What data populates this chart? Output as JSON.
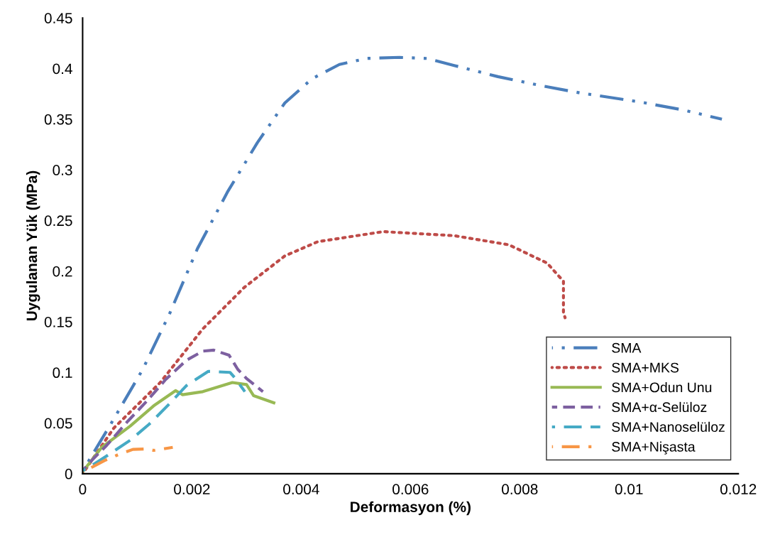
{
  "chart_data": {
    "type": "line",
    "xlabel": "Deformasyon (%)",
    "ylabel": "Uygulanan Yük (MPa)",
    "xlim": [
      0,
      0.012
    ],
    "xticks": [
      0,
      0.002,
      0.004,
      0.006,
      0.008,
      0.01,
      0.012
    ],
    "ylim": [
      0,
      0.45
    ],
    "yticks": [
      0,
      0.05,
      0.1,
      0.15,
      0.2,
      0.25,
      0.3,
      0.35,
      0.4,
      0.45
    ],
    "grid": false,
    "legend": "bottom right",
    "series": [
      {
        "name": "SMA",
        "color": "#4a7ebb",
        "line_style": "dashdotdot",
        "x": [
          1e-05,
          0.00057,
          0.0011,
          0.0016,
          0.0021,
          0.00265,
          0.0032,
          0.0037,
          0.0042,
          0.0047,
          0.0052,
          0.0058,
          0.0063,
          0.0068,
          0.0076,
          0.0084,
          0.0091,
          0.0102,
          0.011,
          0.0117
        ],
        "values": [
          0.0035,
          0.054,
          0.103,
          0.159,
          0.222,
          0.278,
          0.327,
          0.366,
          0.39,
          0.404,
          0.41,
          0.411,
          0.41,
          0.403,
          0.392,
          0.383,
          0.376,
          0.367,
          0.359,
          0.35
        ]
      },
      {
        "name": "SMA+MKS",
        "color": "#be4b48",
        "line_style": "dotted",
        "x": [
          0,
          0.00057,
          0.00142,
          0.0022,
          0.00296,
          0.0037,
          0.0043,
          0.0055,
          0.0068,
          0.0078,
          0.0085,
          0.0088,
          0.0088,
          0.00883
        ],
        "values": [
          0,
          0.045,
          0.09,
          0.143,
          0.184,
          0.215,
          0.229,
          0.239,
          0.235,
          0.226,
          0.208,
          0.19,
          0.159,
          0.154
        ]
      },
      {
        "name": "SMA+Odun Unu",
        "color": "#98b954",
        "line_style": "solid",
        "x": [
          0,
          0.00035,
          0.00087,
          0.0013,
          0.0017,
          0.00183,
          0.0022,
          0.00274,
          0.003,
          0.00313,
          0.0035
        ],
        "values": [
          0.002,
          0.026,
          0.047,
          0.067,
          0.082,
          0.078,
          0.081,
          0.09,
          0.088,
          0.077,
          0.07
        ]
      },
      {
        "name": "SMA+α-Selüloz",
        "color": "#7d60a0",
        "line_style": "dashed",
        "x": [
          0,
          0.0002,
          0.00044,
          0.00083,
          0.00118,
          0.00152,
          0.0019,
          0.0022,
          0.0024,
          0.00268,
          0.00284,
          0.003,
          0.0033
        ],
        "values": [
          0.003,
          0.015,
          0.028,
          0.052,
          0.072,
          0.093,
          0.112,
          0.121,
          0.122,
          0.117,
          0.103,
          0.094,
          0.081
        ]
      },
      {
        "name": "SMA+Nanoselüloz",
        "color": "#46aac5",
        "line_style": "longdashed",
        "x": [
          0,
          0.00018,
          0.00048,
          0.00087,
          0.00122,
          0.00157,
          0.0019,
          0.0023,
          0.0027,
          0.00278,
          0.00297
        ],
        "values": [
          0.003,
          0.0085,
          0.019,
          0.033,
          0.049,
          0.068,
          0.087,
          0.101,
          0.1,
          0.095,
          0.081
        ]
      },
      {
        "name": "SMA+Nişasta",
        "color": "#f79646",
        "line_style": "dashdot",
        "x": [
          0,
          0.0004,
          0.00066,
          0.00092,
          0.00118,
          0.0013,
          0.00165
        ],
        "values": [
          0.0014,
          0.013,
          0.019,
          0.024,
          0.0245,
          0.023,
          0.026
        ]
      }
    ]
  }
}
